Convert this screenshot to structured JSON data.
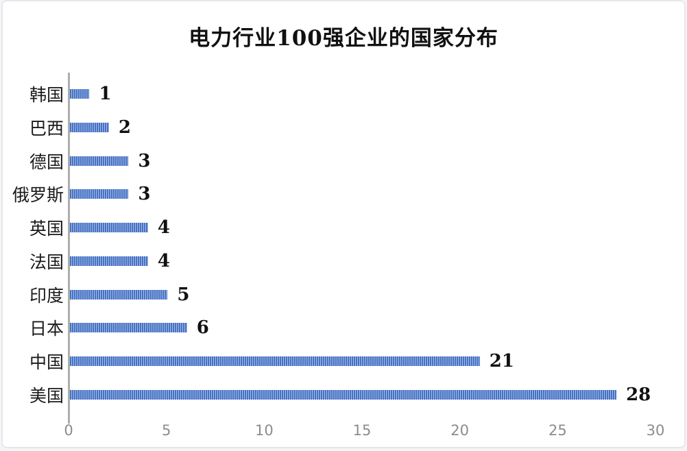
{
  "card": {
    "background_color": "#ffffff",
    "border_color": "#e6e6ec"
  },
  "chart_data": {
    "type": "bar",
    "orientation": "horizontal",
    "title": "电力行业100强企业的国家分布",
    "categories": [
      "韩国",
      "巴西",
      "德国",
      "俄罗斯",
      "英国",
      "法国",
      "印度",
      "日本",
      "中国",
      "美国"
    ],
    "values": [
      1,
      2,
      3,
      3,
      4,
      4,
      5,
      6,
      21,
      28
    ],
    "xlabel": "",
    "ylabel": "",
    "xlim": [
      0,
      30
    ],
    "xticks": [
      0,
      5,
      10,
      15,
      20,
      25,
      30
    ],
    "grid": false,
    "legend": "none",
    "data_labels_shown": true,
    "bar_color": "#4472c4",
    "bar_stripe_color": "#a9bce6",
    "axis_line_color": "#aeaeae",
    "tick_label_color": "#8c8c8c",
    "category_label_color": "#1a1a1a",
    "value_label_color": "#111111"
  }
}
